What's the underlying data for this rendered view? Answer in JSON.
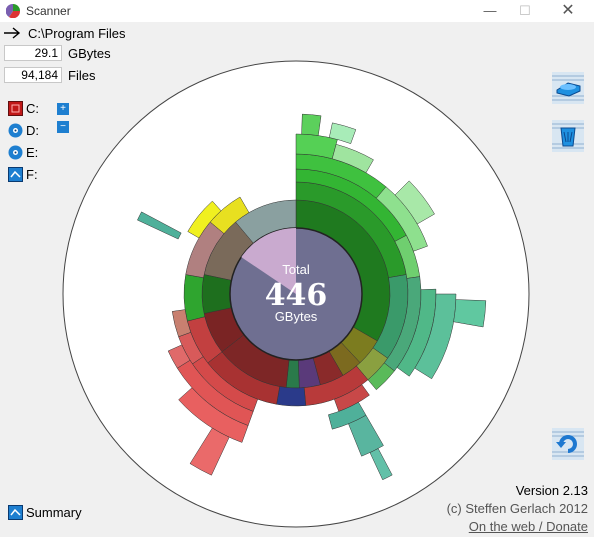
{
  "window": {
    "title": "Scanner"
  },
  "path": {
    "value": "C:\\Program Files"
  },
  "stats": {
    "size_value": "29.1",
    "size_unit": "GBytes",
    "files_value": "94,184",
    "files_unit": "Files"
  },
  "drives": [
    {
      "label": "C:"
    },
    {
      "label": "D:"
    },
    {
      "label": "E:"
    },
    {
      "label": "F:"
    }
  ],
  "zoom": {
    "in": "+",
    "out": "−"
  },
  "chart": {
    "total_label": "Total",
    "total_value": "446",
    "total_unit": "GBytes"
  },
  "footer": {
    "version": "Version 2.13",
    "copyright": "(c) Steffen Gerlach 2012",
    "link": "On the web / Donate"
  },
  "summary": {
    "label": "Summary"
  },
  "icons": {
    "app": "scanner-app-icon",
    "path": "arrow-right-icon",
    "c_drive": "drive-c-icon",
    "disc": "disc-drive-icon",
    "network": "network-drive-icon",
    "side1": "drive-action-icon",
    "side2": "recycle-bin-icon",
    "refresh": "refresh-icon"
  }
}
